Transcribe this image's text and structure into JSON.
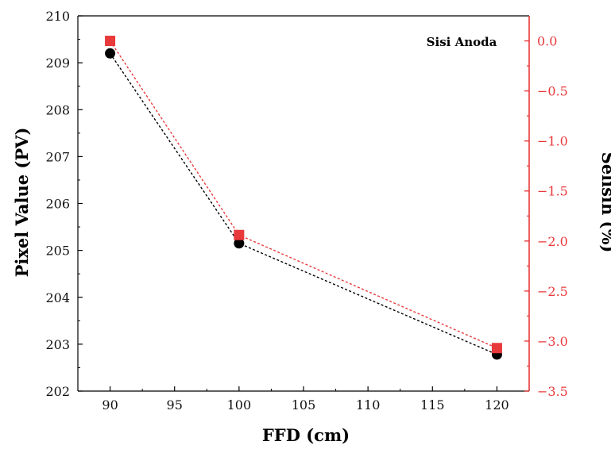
{
  "chart_data": {
    "type": "line",
    "title": "",
    "annotation": "Sisi Anoda",
    "xlabel": "FFD (cm)",
    "ylabel_left": "Pixel Value (PV)",
    "ylabel_right": "Selisih (%)",
    "xlim": [
      87.5,
      122.5
    ],
    "ylim_left": [
      202,
      210
    ],
    "ylim_right": [
      -3.5,
      0.25
    ],
    "x_ticks": [
      90,
      95,
      100,
      105,
      110,
      115,
      120
    ],
    "y_left_ticks": [
      202,
      203,
      204,
      205,
      206,
      207,
      208,
      209,
      210
    ],
    "y_right_ticks": [
      0.0,
      -0.5,
      -1.0,
      -1.5,
      -2.0,
      -2.5,
      -3.0,
      -3.5
    ],
    "y_right_tick_labels": [
      "0.0",
      "−0.5",
      "−1.0",
      "−1.5",
      "−2.0",
      "−2.5",
      "−3.0",
      "−3.5"
    ],
    "grid": false,
    "colors": {
      "left_axis": "#000000",
      "right_axis": "#e8393b"
    },
    "series": [
      {
        "axis": "left",
        "marker": "circle",
        "line": "dotted",
        "color": "#000000",
        "x": [
          90,
          100,
          120
        ],
        "y": [
          209.2,
          205.15,
          202.78
        ]
      },
      {
        "axis": "right",
        "marker": "square",
        "line": "dotted",
        "color": "#e8393b",
        "x": [
          90,
          100,
          120
        ],
        "y": [
          0.0,
          -1.94,
          -3.07
        ]
      }
    ]
  }
}
